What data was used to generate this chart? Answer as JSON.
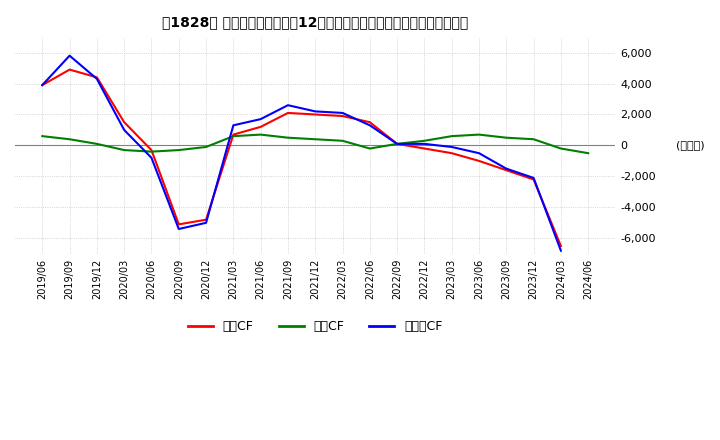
{
  "title": "　1828　 キャッシュフローの12か月移動合計の対前年同期増減額の推移",
  "ylabel": "(百万円)",
  "ylim": [
    -7000,
    7000
  ],
  "yticks": [
    -6000,
    -4000,
    -2000,
    0,
    2000,
    4000,
    6000
  ],
  "dates": [
    "2019/06",
    "2019/09",
    "2019/12",
    "2020/03",
    "2020/06",
    "2020/09",
    "2020/12",
    "2021/03",
    "2021/06",
    "2021/09",
    "2021/12",
    "2022/03",
    "2022/06",
    "2022/09",
    "2022/12",
    "2023/03",
    "2023/06",
    "2023/09",
    "2023/12",
    "2024/03",
    "2024/06"
  ],
  "operating_cf": [
    3900,
    4900,
    4400,
    1500,
    -300,
    -5100,
    -4800,
    700,
    1200,
    2100,
    2000,
    1900,
    1500,
    100,
    -200,
    -500,
    -1000,
    -1600,
    -2200,
    -6500,
    null
  ],
  "investing_cf": [
    600,
    400,
    100,
    -300,
    -400,
    -300,
    -100,
    600,
    700,
    500,
    400,
    300,
    -200,
    100,
    300,
    600,
    700,
    500,
    400,
    -200,
    -500
  ],
  "free_cf": [
    3900,
    5800,
    4300,
    1000,
    -800,
    -5400,
    -5000,
    1300,
    1700,
    2600,
    2200,
    2100,
    1300,
    100,
    100,
    -100,
    -500,
    -1500,
    -2100,
    -6800,
    null
  ],
  "operating_color": "#ff0000",
  "investing_color": "#008000",
  "free_color": "#0000ff",
  "background_color": "#ffffff",
  "grid_color": "#bbbbbb",
  "legend_labels": [
    "営業CF",
    "投資CF",
    "フリーCF"
  ]
}
